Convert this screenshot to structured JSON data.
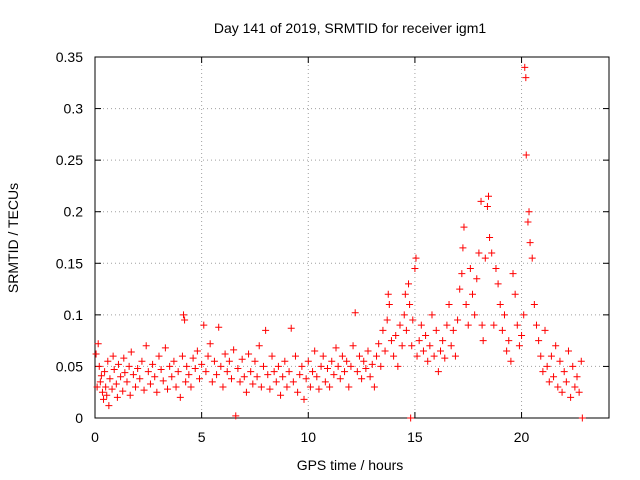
{
  "chart_data": {
    "type": "scatter",
    "title": "Day 141 of 2019, SRMTID for receiver igm1",
    "xlabel": "GPS time / hours",
    "ylabel": "SRMTID / TECUs",
    "xlim": [
      0,
      24.1
    ],
    "ylim": [
      0,
      0.35
    ],
    "xticks": [
      0,
      5,
      10,
      15,
      20
    ],
    "xtick_labels": [
      "0",
      "5",
      "10",
      "15",
      "20"
    ],
    "yticks": [
      0,
      0.05,
      0.1,
      0.15,
      0.2,
      0.25,
      0.3,
      0.35
    ],
    "ytick_labels": [
      "0",
      "0.05",
      "0.1",
      "0.15",
      "0.2",
      "0.25",
      "0.3",
      "0.35"
    ],
    "grid": true,
    "marker": "+",
    "color": "#ff0000",
    "series": [
      {
        "name": "SRMTID",
        "points": [
          [
            0.05,
            0.062
          ],
          [
            0.1,
            0.03
          ],
          [
            0.15,
            0.072
          ],
          [
            0.2,
            0.05
          ],
          [
            0.25,
            0.035
          ],
          [
            0.3,
            0.041
          ],
          [
            0.35,
            0.025
          ],
          [
            0.4,
            0.018
          ],
          [
            0.45,
            0.045
          ],
          [
            0.5,
            0.03
          ],
          [
            0.55,
            0.022
          ],
          [
            0.6,
            0.055
          ],
          [
            0.65,
            0.012
          ],
          [
            0.7,
            0.038
          ],
          [
            0.8,
            0.028
          ],
          [
            0.85,
            0.06
          ],
          [
            0.9,
            0.047
          ],
          [
            1.0,
            0.033
          ],
          [
            1.05,
            0.02
          ],
          [
            1.1,
            0.052
          ],
          [
            1.2,
            0.04
          ],
          [
            1.3,
            0.026
          ],
          [
            1.35,
            0.058
          ],
          [
            1.4,
            0.044
          ],
          [
            1.5,
            0.035
          ],
          [
            1.6,
            0.05
          ],
          [
            1.65,
            0.022
          ],
          [
            1.7,
            0.064
          ],
          [
            1.8,
            0.042
          ],
          [
            1.9,
            0.03
          ],
          [
            2.0,
            0.048
          ],
          [
            2.1,
            0.038
          ],
          [
            2.2,
            0.055
          ],
          [
            2.3,
            0.027
          ],
          [
            2.4,
            0.07
          ],
          [
            2.5,
            0.045
          ],
          [
            2.6,
            0.033
          ],
          [
            2.7,
            0.052
          ],
          [
            2.8,
            0.04
          ],
          [
            2.9,
            0.025
          ],
          [
            3.0,
            0.06
          ],
          [
            3.1,
            0.047
          ],
          [
            3.2,
            0.036
          ],
          [
            3.3,
            0.068
          ],
          [
            3.4,
            0.028
          ],
          [
            3.5,
            0.05
          ],
          [
            3.6,
            0.04
          ],
          [
            3.7,
            0.055
          ],
          [
            3.8,
            0.03
          ],
          [
            3.9,
            0.045
          ],
          [
            4.0,
            0.02
          ],
          [
            4.1,
            0.06
          ],
          [
            4.15,
            0.1
          ],
          [
            4.2,
            0.095
          ],
          [
            4.25,
            0.035
          ],
          [
            4.3,
            0.05
          ],
          [
            4.4,
            0.042
          ],
          [
            4.5,
            0.03
          ],
          [
            4.6,
            0.058
          ],
          [
            4.7,
            0.048
          ],
          [
            4.8,
            0.065
          ],
          [
            4.9,
            0.038
          ],
          [
            5.0,
            0.052
          ],
          [
            5.1,
            0.09
          ],
          [
            5.2,
            0.045
          ],
          [
            5.3,
            0.06
          ],
          [
            5.4,
            0.072
          ],
          [
            5.5,
            0.035
          ],
          [
            5.6,
            0.055
          ],
          [
            5.7,
            0.042
          ],
          [
            5.8,
            0.088
          ],
          [
            5.9,
            0.05
          ],
          [
            6.0,
            0.03
          ],
          [
            6.1,
            0.062
          ],
          [
            6.2,
            0.045
          ],
          [
            6.3,
            0.055
          ],
          [
            6.4,
            0.038
          ],
          [
            6.5,
            0.066
          ],
          [
            6.6,
            0.002
          ],
          [
            6.7,
            0.048
          ],
          [
            6.8,
            0.035
          ],
          [
            6.9,
            0.057
          ],
          [
            7.0,
            0.04
          ],
          [
            7.1,
            0.025
          ],
          [
            7.2,
            0.062
          ],
          [
            7.3,
            0.045
          ],
          [
            7.4,
            0.033
          ],
          [
            7.5,
            0.055
          ],
          [
            7.6,
            0.04
          ],
          [
            7.7,
            0.07
          ],
          [
            7.8,
            0.03
          ],
          [
            7.9,
            0.05
          ],
          [
            8.0,
            0.085
          ],
          [
            8.1,
            0.042
          ],
          [
            8.2,
            0.028
          ],
          [
            8.3,
            0.06
          ],
          [
            8.4,
            0.045
          ],
          [
            8.5,
            0.035
          ],
          [
            8.6,
            0.05
          ],
          [
            8.7,
            0.022
          ],
          [
            8.8,
            0.04
          ],
          [
            8.9,
            0.055
          ],
          [
            9.0,
            0.03
          ],
          [
            9.1,
            0.045
          ],
          [
            9.2,
            0.087
          ],
          [
            9.3,
            0.035
          ],
          [
            9.4,
            0.06
          ],
          [
            9.5,
            0.025
          ],
          [
            9.6,
            0.042
          ],
          [
            9.7,
            0.05
          ],
          [
            9.8,
            0.018
          ],
          [
            9.9,
            0.038
          ],
          [
            10.0,
            0.055
          ],
          [
            10.1,
            0.03
          ],
          [
            10.2,
            0.045
          ],
          [
            10.3,
            0.065
          ],
          [
            10.4,
            0.04
          ],
          [
            10.5,
            0.028
          ],
          [
            10.6,
            0.05
          ],
          [
            10.7,
            0.06
          ],
          [
            10.8,
            0.035
          ],
          [
            10.9,
            0.048
          ],
          [
            11.0,
            0.03
          ],
          [
            11.1,
            0.055
          ],
          [
            11.2,
            0.042
          ],
          [
            11.3,
            0.068
          ],
          [
            11.4,
            0.05
          ],
          [
            11.5,
            0.038
          ],
          [
            11.6,
            0.06
          ],
          [
            11.7,
            0.045
          ],
          [
            11.8,
            0.055
          ],
          [
            11.9,
            0.03
          ],
          [
            12.0,
            0.05
          ],
          [
            12.1,
            0.07
          ],
          [
            12.2,
            0.102
          ],
          [
            12.3,
            0.045
          ],
          [
            12.4,
            0.06
          ],
          [
            12.5,
            0.038
          ],
          [
            12.6,
            0.055
          ],
          [
            12.7,
            0.048
          ],
          [
            12.8,
            0.065
          ],
          [
            12.9,
            0.04
          ],
          [
            13.0,
            0.052
          ],
          [
            13.1,
            0.03
          ],
          [
            13.2,
            0.06
          ],
          [
            13.3,
            0.072
          ],
          [
            13.4,
            0.05
          ],
          [
            13.5,
            0.085
          ],
          [
            13.6,
            0.065
          ],
          [
            13.7,
            0.095
          ],
          [
            13.75,
            0.12
          ],
          [
            13.8,
            0.11
          ],
          [
            13.9,
            0.075
          ],
          [
            14.0,
            0.06
          ],
          [
            14.1,
            0.08
          ],
          [
            14.2,
            0.05
          ],
          [
            14.3,
            0.09
          ],
          [
            14.4,
            0.07
          ],
          [
            14.5,
            0.1
          ],
          [
            14.55,
            0.12
          ],
          [
            14.6,
            0.085
          ],
          [
            14.7,
            0.13
          ],
          [
            14.75,
            0.11
          ],
          [
            14.8,
            0.0
          ],
          [
            14.85,
            0.07
          ],
          [
            14.9,
            0.095
          ],
          [
            15.0,
            0.145
          ],
          [
            15.05,
            0.155
          ],
          [
            15.1,
            0.06
          ],
          [
            15.2,
            0.075
          ],
          [
            15.3,
            0.09
          ],
          [
            15.4,
            0.065
          ],
          [
            15.5,
            0.08
          ],
          [
            15.6,
            0.055
          ],
          [
            15.7,
            0.07
          ],
          [
            15.8,
            0.1
          ],
          [
            15.9,
            0.06
          ],
          [
            16.0,
            0.085
          ],
          [
            16.1,
            0.045
          ],
          [
            16.2,
            0.065
          ],
          [
            16.3,
            0.075
          ],
          [
            16.4,
            0.058
          ],
          [
            16.5,
            0.09
          ],
          [
            16.6,
            0.11
          ],
          [
            16.7,
            0.07
          ],
          [
            16.8,
            0.085
          ],
          [
            16.9,
            0.06
          ],
          [
            17.0,
            0.095
          ],
          [
            17.1,
            0.125
          ],
          [
            17.2,
            0.14
          ],
          [
            17.25,
            0.165
          ],
          [
            17.3,
            0.185
          ],
          [
            17.4,
            0.11
          ],
          [
            17.5,
            0.09
          ],
          [
            17.6,
            0.145
          ],
          [
            17.7,
            0.12
          ],
          [
            17.8,
            0.1
          ],
          [
            17.9,
            0.135
          ],
          [
            18.0,
            0.16
          ],
          [
            18.1,
            0.21
          ],
          [
            18.15,
            0.09
          ],
          [
            18.2,
            0.075
          ],
          [
            18.3,
            0.155
          ],
          [
            18.4,
            0.205
          ],
          [
            18.45,
            0.215
          ],
          [
            18.5,
            0.175
          ],
          [
            18.6,
            0.16
          ],
          [
            18.7,
            0.09
          ],
          [
            18.8,
            0.145
          ],
          [
            18.9,
            0.13
          ],
          [
            19.0,
            0.11
          ],
          [
            19.1,
            0.085
          ],
          [
            19.2,
            0.1
          ],
          [
            19.3,
            0.065
          ],
          [
            19.4,
            0.075
          ],
          [
            19.5,
            0.055
          ],
          [
            19.6,
            0.14
          ],
          [
            19.7,
            0.12
          ],
          [
            19.8,
            0.09
          ],
          [
            19.9,
            0.07
          ],
          [
            20.0,
            0.08
          ],
          [
            20.1,
            0.1
          ],
          [
            20.15,
            0.34
          ],
          [
            20.2,
            0.33
          ],
          [
            20.22,
            0.255
          ],
          [
            20.3,
            0.19
          ],
          [
            20.35,
            0.2
          ],
          [
            20.4,
            0.17
          ],
          [
            20.5,
            0.155
          ],
          [
            20.6,
            0.11
          ],
          [
            20.7,
            0.09
          ],
          [
            20.8,
            0.075
          ],
          [
            20.9,
            0.06
          ],
          [
            21.0,
            0.045
          ],
          [
            21.1,
            0.085
          ],
          [
            21.2,
            0.05
          ],
          [
            21.3,
            0.035
          ],
          [
            21.4,
            0.06
          ],
          [
            21.5,
            0.04
          ],
          [
            21.6,
            0.07
          ],
          [
            21.7,
            0.03
          ],
          [
            21.8,
            0.055
          ],
          [
            21.9,
            0.025
          ],
          [
            22.0,
            0.045
          ],
          [
            22.1,
            0.035
          ],
          [
            22.2,
            0.065
          ],
          [
            22.3,
            0.02
          ],
          [
            22.4,
            0.05
          ],
          [
            22.5,
            0.03
          ],
          [
            22.6,
            0.04
          ],
          [
            22.7,
            0.025
          ],
          [
            22.8,
            0.055
          ],
          [
            22.85,
            0.0
          ]
        ]
      }
    ]
  }
}
